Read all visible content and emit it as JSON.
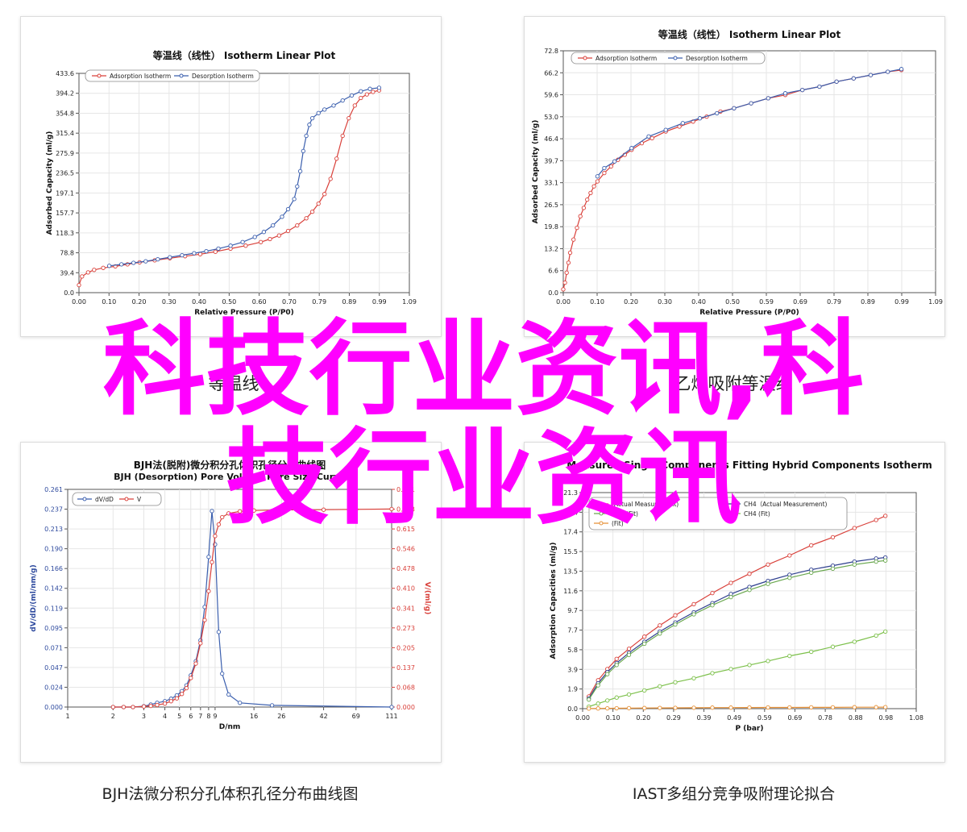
{
  "overlay": {
    "line1": "科技行业资讯,科",
    "line2": "技行业资讯"
  },
  "captions": {
    "top_left": "等温线",
    "top_right": "乙烯吸附等温线",
    "bottom_left": "BJH法微分积分孔体积孔径分布曲线图",
    "bottom_right": "IAST多组分竞争吸附理论拟合"
  },
  "chart_data": [
    {
      "type": "line",
      "title": "等温线（线性） Isotherm Linear Plot",
      "xlabel": "Relative Pressure (P/P0)",
      "ylabel": "Adsorbed Capacity (ml/g)",
      "xticks": [
        "0.00",
        "0.10",
        "0.20",
        "0.30",
        "0.40",
        "0.50",
        "0.60",
        "0.70",
        "0.79",
        "0.89",
        "0.99",
        "1.09"
      ],
      "yticks": [
        "0.0",
        "39.4",
        "78.8",
        "118.3",
        "157.7",
        "197.1",
        "236.5",
        "275.9",
        "315.4",
        "354.8",
        "394.2",
        "433.6"
      ],
      "xlim": [
        0,
        1.09
      ],
      "ylim": [
        0,
        433.6
      ],
      "legend_position": "top-left",
      "series": [
        {
          "name": "Adsorption Isotherm",
          "color": "#d9403a",
          "x": [
            0.0,
            0.01,
            0.03,
            0.05,
            0.08,
            0.12,
            0.16,
            0.2,
            0.25,
            0.3,
            0.35,
            0.4,
            0.45,
            0.5,
            0.55,
            0.6,
            0.63,
            0.66,
            0.69,
            0.72,
            0.75,
            0.77,
            0.79,
            0.81,
            0.83,
            0.85,
            0.87,
            0.89,
            0.91,
            0.93,
            0.95,
            0.97,
            0.99
          ],
          "y": [
            15,
            32,
            40,
            45,
            49,
            52,
            56,
            60,
            64,
            68,
            72,
            76,
            81,
            87,
            93,
            100,
            106,
            113,
            122,
            133,
            147,
            160,
            176,
            195,
            225,
            265,
            310,
            345,
            370,
            385,
            392,
            397,
            400
          ]
        },
        {
          "name": "Desorption Isotherm",
          "color": "#3b5fae",
          "x": [
            0.1,
            0.14,
            0.18,
            0.22,
            0.26,
            0.3,
            0.34,
            0.38,
            0.42,
            0.46,
            0.5,
            0.54,
            0.58,
            0.61,
            0.64,
            0.67,
            0.69,
            0.71,
            0.72,
            0.73,
            0.74,
            0.75,
            0.76,
            0.77,
            0.79,
            0.81,
            0.84,
            0.87,
            0.9,
            0.93,
            0.96,
            0.99
          ],
          "y": [
            53,
            56,
            59,
            62,
            66,
            70,
            74,
            78,
            82,
            87,
            93,
            100,
            110,
            120,
            133,
            150,
            165,
            185,
            210,
            240,
            280,
            310,
            332,
            345,
            355,
            362,
            370,
            380,
            390,
            398,
            403,
            405
          ]
        }
      ]
    },
    {
      "type": "line",
      "title": "等温线（线性） Isotherm Linear Plot",
      "xlabel": "Relative Pressure (P/P0)",
      "ylabel": "Adsorbed Capacity (ml/g)",
      "xticks": [
        "0.00",
        "0.10",
        "0.20",
        "0.30",
        "0.40",
        "0.50",
        "0.59",
        "0.69",
        "0.79",
        "0.89",
        "0.99",
        "1.09"
      ],
      "yticks": [
        "0.0",
        "6.6",
        "13.2",
        "19.8",
        "26.5",
        "33.1",
        "39.7",
        "46.4",
        "53.0",
        "59.6",
        "66.2",
        "72.8"
      ],
      "xlim": [
        0,
        1.09
      ],
      "ylim": [
        0,
        72.8
      ],
      "legend_position": "top-left",
      "series": [
        {
          "name": "Adsorption Isotherm",
          "color": "#d9403a",
          "x": [
            0.0,
            0.005,
            0.01,
            0.015,
            0.02,
            0.03,
            0.04,
            0.05,
            0.06,
            0.07,
            0.08,
            0.09,
            0.1,
            0.12,
            0.14,
            0.16,
            0.18,
            0.2,
            0.23,
            0.26,
            0.3,
            0.34,
            0.38,
            0.42,
            0.46,
            0.5,
            0.55,
            0.6,
            0.65,
            0.7,
            0.75,
            0.8,
            0.85,
            0.9,
            0.95,
            0.99
          ],
          "y": [
            1,
            3,
            6,
            9,
            12,
            16,
            19.5,
            23,
            25.5,
            28,
            30,
            32,
            33.5,
            36,
            38,
            40,
            41.5,
            43,
            45,
            46.5,
            48.5,
            50,
            51.5,
            53,
            54.5,
            55.5,
            57,
            58.5,
            59.5,
            61,
            62,
            63.5,
            64.5,
            65.5,
            66.5,
            67
          ]
        },
        {
          "name": "Desorption Isotherm",
          "color": "#3b5fae",
          "x": [
            0.1,
            0.12,
            0.15,
            0.2,
            0.25,
            0.3,
            0.35,
            0.4,
            0.45,
            0.5,
            0.55,
            0.6,
            0.65,
            0.7,
            0.75,
            0.8,
            0.85,
            0.9,
            0.95,
            0.99
          ],
          "y": [
            35,
            37.5,
            39.5,
            43.5,
            47,
            49,
            51,
            52.5,
            54,
            55.5,
            57,
            58.5,
            60,
            61,
            62,
            63.5,
            64.5,
            65.5,
            66.5,
            67.3
          ]
        }
      ]
    },
    {
      "type": "line",
      "title": "BJH法(脱附)微分积分孔体积孔径分布曲线图",
      "subtitle": "BJH (Desorption) Pore Volume Pore Size Curve",
      "xlabel": "D/nm",
      "ylabel": "dV/dD/(ml/nm/g)",
      "ylabel_right": "V/(ml/g)",
      "xticks": [
        "1",
        "2",
        "3",
        "4",
        "5",
        "6",
        "7",
        "8",
        "9",
        "16",
        "26",
        "42",
        "69",
        "111"
      ],
      "yticks_left": [
        "0.000",
        "0.024",
        "0.047",
        "0.071",
        "0.095",
        "0.119",
        "0.142",
        "0.166",
        "0.190",
        "0.213",
        "0.237",
        "0.261"
      ],
      "yticks_right": [
        "0.000",
        "0.068",
        "0.137",
        "0.205",
        "0.273",
        "0.341",
        "0.410",
        "0.478",
        "0.546",
        "0.615",
        "0.683",
        "0.751"
      ],
      "x_scale": "log",
      "xlim": [
        1,
        111
      ],
      "ylim_left": [
        0,
        0.261
      ],
      "ylim_right": [
        0,
        0.751
      ],
      "legend_position": "top-left",
      "series": [
        {
          "name": "dV/dD",
          "color": "#3b5fae",
          "axis": "left",
          "x": [
            2,
            2.3,
            2.6,
            3,
            3.3,
            3.6,
            4,
            4.4,
            4.8,
            5.2,
            5.6,
            6,
            6.5,
            7,
            7.5,
            8,
            8.5,
            9,
            9.5,
            10,
            11,
            13,
            22,
            111
          ],
          "y": [
            0,
            0,
            0,
            0.001,
            0.003,
            0.005,
            0.007,
            0.01,
            0.014,
            0.019,
            0.026,
            0.038,
            0.055,
            0.08,
            0.12,
            0.18,
            0.235,
            0.195,
            0.09,
            0.04,
            0.015,
            0.005,
            0.002,
            0
          ]
        },
        {
          "name": "V",
          "color": "#d9403a",
          "axis": "right",
          "x": [
            2,
            2.3,
            2.6,
            3,
            3.3,
            3.6,
            4,
            4.4,
            4.8,
            5.2,
            5.6,
            6,
            6.5,
            7,
            7.5,
            8,
            8.5,
            9,
            9.5,
            10,
            11,
            13,
            16,
            26,
            42,
            69,
            111
          ],
          "y": [
            0,
            0,
            0,
            0.002,
            0.004,
            0.007,
            0.012,
            0.02,
            0.03,
            0.045,
            0.065,
            0.1,
            0.15,
            0.22,
            0.3,
            0.4,
            0.5,
            0.59,
            0.63,
            0.655,
            0.668,
            0.675,
            0.678,
            0.68,
            0.681,
            0.682,
            0.683
          ]
        }
      ]
    },
    {
      "type": "line",
      "title": "Measured Single Components Fitting Hybrid Components Isotherm",
      "xlabel": "P (bar)",
      "ylabel": "Adsorption Capacities (ml/g)",
      "xticks": [
        "0.00",
        "0.10",
        "0.20",
        "0.29",
        "0.39",
        "0.49",
        "0.59",
        "0.69",
        "0.78",
        "0.88",
        "0.98",
        "1.08"
      ],
      "yticks": [
        "0.0",
        "1.9",
        "3.9",
        "5.8",
        "7.7",
        "9.7",
        "11.6",
        "13.5",
        "15.5",
        "17.4",
        "19.4",
        "21.3"
      ],
      "xlim": [
        0,
        1.08
      ],
      "ylim": [
        0,
        21.3
      ],
      "legend_position": "top-left",
      "legend_labels": [
        "(Actual Measurement)",
        "CH4（Actual Measurement)",
        "CO2 (Fit)",
        "CH4 (Fit)",
        "(Fit)"
      ],
      "series": [
        {
          "color": "#d9403a",
          "x": [
            0.02,
            0.05,
            0.08,
            0.11,
            0.15,
            0.2,
            0.25,
            0.3,
            0.36,
            0.42,
            0.48,
            0.54,
            0.6,
            0.67,
            0.74,
            0.81,
            0.88,
            0.95,
            0.98
          ],
          "y": [
            1.2,
            2.8,
            3.9,
            4.9,
            5.9,
            7.1,
            8.2,
            9.2,
            10.3,
            11.4,
            12.4,
            13.3,
            14.2,
            15.1,
            16.1,
            16.9,
            17.8,
            18.6,
            19.0
          ]
        },
        {
          "color": "#2e3f8f",
          "x": [
            0.02,
            0.05,
            0.08,
            0.11,
            0.15,
            0.2,
            0.25,
            0.3,
            0.36,
            0.42,
            0.48,
            0.54,
            0.6,
            0.67,
            0.74,
            0.81,
            0.88,
            0.95,
            0.98
          ],
          "y": [
            1.0,
            2.5,
            3.6,
            4.5,
            5.5,
            6.6,
            7.6,
            8.5,
            9.5,
            10.4,
            11.3,
            12.0,
            12.6,
            13.2,
            13.7,
            14.1,
            14.5,
            14.8,
            14.9
          ]
        },
        {
          "color": "#6aa84f",
          "x": [
            0.02,
            0.05,
            0.08,
            0.11,
            0.15,
            0.2,
            0.25,
            0.3,
            0.36,
            0.42,
            0.48,
            0.54,
            0.6,
            0.67,
            0.74,
            0.81,
            0.88,
            0.95,
            0.98
          ],
          "y": [
            0.9,
            2.3,
            3.4,
            4.3,
            5.3,
            6.4,
            7.4,
            8.3,
            9.3,
            10.2,
            11.0,
            11.7,
            12.3,
            12.9,
            13.4,
            13.8,
            14.2,
            14.5,
            14.6
          ]
        },
        {
          "color": "#7cc04a",
          "x": [
            0.02,
            0.05,
            0.08,
            0.11,
            0.15,
            0.2,
            0.25,
            0.3,
            0.36,
            0.42,
            0.48,
            0.54,
            0.6,
            0.67,
            0.74,
            0.81,
            0.88,
            0.95,
            0.98
          ],
          "y": [
            0.2,
            0.5,
            0.8,
            1.1,
            1.4,
            1.8,
            2.2,
            2.6,
            3.0,
            3.5,
            3.9,
            4.3,
            4.7,
            5.2,
            5.6,
            6.1,
            6.6,
            7.2,
            7.6
          ]
        },
        {
          "color": "#e69138",
          "x": [
            0.02,
            0.05,
            0.08,
            0.11,
            0.15,
            0.2,
            0.25,
            0.3,
            0.36,
            0.42,
            0.48,
            0.54,
            0.6,
            0.67,
            0.74,
            0.81,
            0.88,
            0.95,
            0.98
          ],
          "y": [
            0.01,
            0.02,
            0.03,
            0.04,
            0.05,
            0.06,
            0.07,
            0.08,
            0.09,
            0.1,
            0.1,
            0.11,
            0.12,
            0.12,
            0.13,
            0.13,
            0.14,
            0.14,
            0.15
          ]
        }
      ]
    }
  ]
}
